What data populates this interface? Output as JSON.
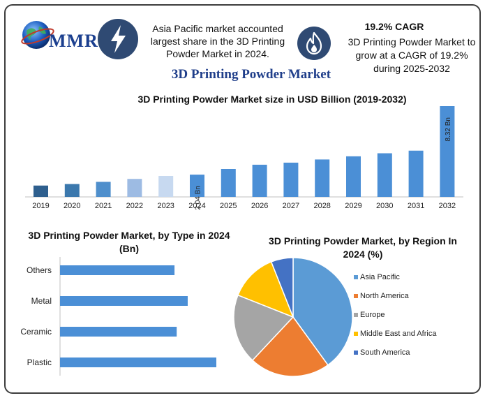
{
  "header": {
    "logo_text": "MMR",
    "info_left": "Asia Pacific market accounted largest share in the 3D Printing Powder Market in 2024.",
    "cagr_title": "19.2% CAGR",
    "info_right": "3D Printing Powder Market to grow at a CAGR of 19.2% during 2025-2032",
    "icons": [
      "globe-logo-icon",
      "lightning-bolt-icon",
      "flame-icon"
    ],
    "colors": {
      "accent_navy": "#1b3f8f",
      "icon_circle": "#2f4a73"
    }
  },
  "main_title": "3D Printing Powder Market",
  "chart_data": [
    {
      "type": "bar",
      "title": "3D Printing Powder Market size in USD Billion (2019-2032)",
      "categories": [
        "2019",
        "2020",
        "2021",
        "2022",
        "2023",
        "2024",
        "2025",
        "2026",
        "2027",
        "2028",
        "2029",
        "2030",
        "2031",
        "2032"
      ],
      "values": [
        1.04,
        1.18,
        1.38,
        1.65,
        1.92,
        2.04,
        2.56,
        2.95,
        3.14,
        3.43,
        3.72,
        4.0,
        4.24,
        8.32
      ],
      "data_labels": {
        "2024": "2.04 Bn",
        "2032": "8.32 Bn"
      },
      "colors": [
        "#2e5f8e",
        "#3b78ad",
        "#4f8fcc",
        "#9dbbe3",
        "#c7d9f0",
        "#4b8fd6",
        "#4b8fd6",
        "#4b8fd6",
        "#4b8fd6",
        "#4b8fd6",
        "#4b8fd6",
        "#4b8fd6",
        "#4b8fd6",
        "#4b8fd6"
      ]
    },
    {
      "type": "bar",
      "orientation": "horizontal",
      "title": "3D Printing Powder Market, by Type in 2024 (Bn)",
      "categories": [
        "Others",
        "Metal",
        "Ceramic",
        "Plastic"
      ],
      "values": [
        0.52,
        0.58,
        0.53,
        0.71
      ],
      "color": "#4b8fd6"
    },
    {
      "type": "pie",
      "title": "3D Printing Powder Market, by Region In 2024 (%)",
      "labels": [
        "Asia Pacific",
        "North America",
        "Europe",
        "Middle East and Africa",
        "South America"
      ],
      "values": [
        40,
        22,
        19,
        13,
        6
      ],
      "colors": [
        "#5b9bd5",
        "#ed7d31",
        "#a5a5a5",
        "#ffc000",
        "#4472c4"
      ],
      "legend": "right"
    }
  ]
}
